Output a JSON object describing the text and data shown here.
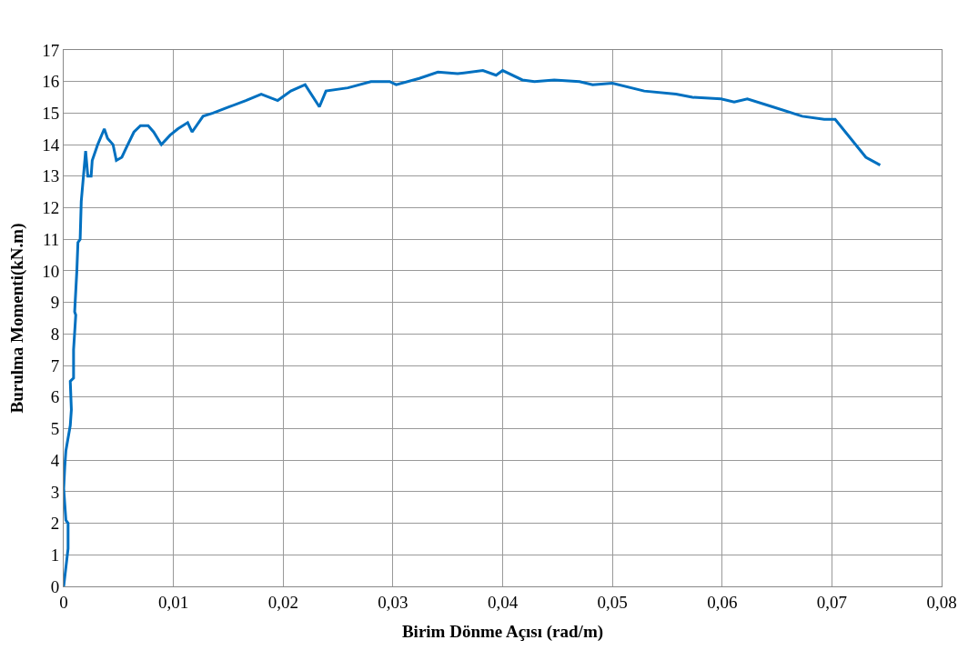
{
  "chart_data": {
    "type": "line",
    "xlabel": "Birim Dönme Açısı (rad/m)",
    "ylabel": "Burulma Momenti(kN.m)",
    "xlim": [
      0,
      0.08
    ],
    "ylim": [
      0,
      17
    ],
    "xticks": [
      0,
      {
        "value": 0.01,
        "label": "0,01"
      },
      {
        "value": 0.02,
        "label": "0,02"
      },
      {
        "value": 0.03,
        "label": "0,03"
      },
      {
        "value": 0.04,
        "label": "0,04"
      },
      {
        "value": 0.05,
        "label": "0,05"
      },
      {
        "value": 0.06,
        "label": "0,06"
      },
      {
        "value": 0.07,
        "label": "0,07"
      },
      {
        "value": 0.08,
        "label": "0,08"
      }
    ],
    "yticks": [
      0,
      1,
      2,
      3,
      4,
      5,
      6,
      7,
      8,
      9,
      10,
      11,
      12,
      13,
      14,
      15,
      16,
      17
    ],
    "grid": true,
    "marker": "none",
    "line_style": "solid",
    "series": [
      {
        "color": "#0070c0",
        "x": [
          0,
          0.0004,
          0.0004,
          0.0002,
          0.0001,
          0,
          0.0001,
          0.0002,
          0.0006,
          0.0007,
          0.0006,
          0.0009,
          0.0009,
          0.0011,
          0.001,
          0.0012,
          0.0013,
          0.0015,
          0.0016,
          0.0018,
          0.002,
          0.0022,
          0.0025,
          0.0026,
          0.0031,
          0.0037,
          0.004,
          0.0045,
          0.0048,
          0.0053,
          0.0057,
          0.0064,
          0.007,
          0.0077,
          0.0082,
          0.0089,
          0.0097,
          0.0104,
          0.0113,
          0.0117,
          0.0127,
          0.0136,
          0.0151,
          0.0166,
          0.018,
          0.0195,
          0.0207,
          0.022,
          0.0233,
          0.0239,
          0.0259,
          0.028,
          0.0297,
          0.0303,
          0.0324,
          0.0341,
          0.0359,
          0.0382,
          0.0394,
          0.04,
          0.0418,
          0.0429,
          0.0447,
          0.047,
          0.0482,
          0.05,
          0.0529,
          0.0558,
          0.0573,
          0.0599,
          0.0611,
          0.0623,
          0.0646,
          0.0673,
          0.0693,
          0.0703,
          0.0731,
          0.0744
        ],
        "values": [
          0,
          1.2,
          2.0,
          2.1,
          2.6,
          3.1,
          3.8,
          4.3,
          5.1,
          5.6,
          6.5,
          6.6,
          7.5,
          8.6,
          8.7,
          10.0,
          10.9,
          11.0,
          12.2,
          13.0,
          13.8,
          13.0,
          13.0,
          13.5,
          14.0,
          14.5,
          14.2,
          14.0,
          13.5,
          13.6,
          13.9,
          14.4,
          14.6,
          14.6,
          14.4,
          14.0,
          14.3,
          14.5,
          14.7,
          14.4,
          14.9,
          15.0,
          15.2,
          15.4,
          15.6,
          15.4,
          15.7,
          15.9,
          15.2,
          15.7,
          15.8,
          16.0,
          16.0,
          15.9,
          16.1,
          16.3,
          16.25,
          16.35,
          16.2,
          16.35,
          16.05,
          16.0,
          16.05,
          16.0,
          15.9,
          15.95,
          15.7,
          15.6,
          15.5,
          15.45,
          15.35,
          15.45,
          15.2,
          14.9,
          14.8,
          14.8,
          13.6,
          13.35
        ]
      }
    ]
  }
}
